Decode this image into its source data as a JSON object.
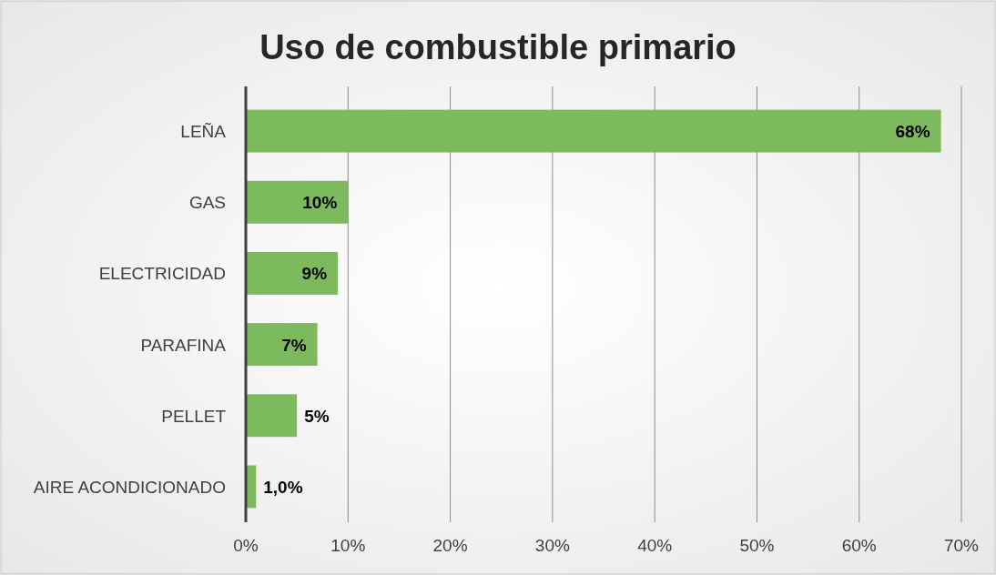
{
  "chart_data": {
    "type": "bar",
    "orientation": "horizontal",
    "title": "Uso de combustible primario",
    "categories": [
      "LEÑA",
      "GAS",
      "ELECTRICIDAD",
      "PARAFINA",
      "PELLET",
      "AIRE ACONDICIONADO"
    ],
    "values": [
      68,
      10,
      9,
      7,
      5,
      1.0
    ],
    "value_labels": [
      "68%",
      "10%",
      "9%",
      "7%",
      "5%",
      "1,0%"
    ],
    "color": "#7dba5e",
    "xlim": [
      0,
      70
    ],
    "xticks": [
      {
        "value": 0,
        "label": "0%"
      },
      {
        "value": 10,
        "label": "10%"
      },
      {
        "value": 20,
        "label": "20%"
      },
      {
        "value": 30,
        "label": "30%"
      },
      {
        "value": 40,
        "label": "40%"
      },
      {
        "value": 50,
        "label": "50%"
      },
      {
        "value": 60,
        "label": "60%"
      },
      {
        "value": 70,
        "label": "70%"
      }
    ],
    "grid": "x"
  }
}
